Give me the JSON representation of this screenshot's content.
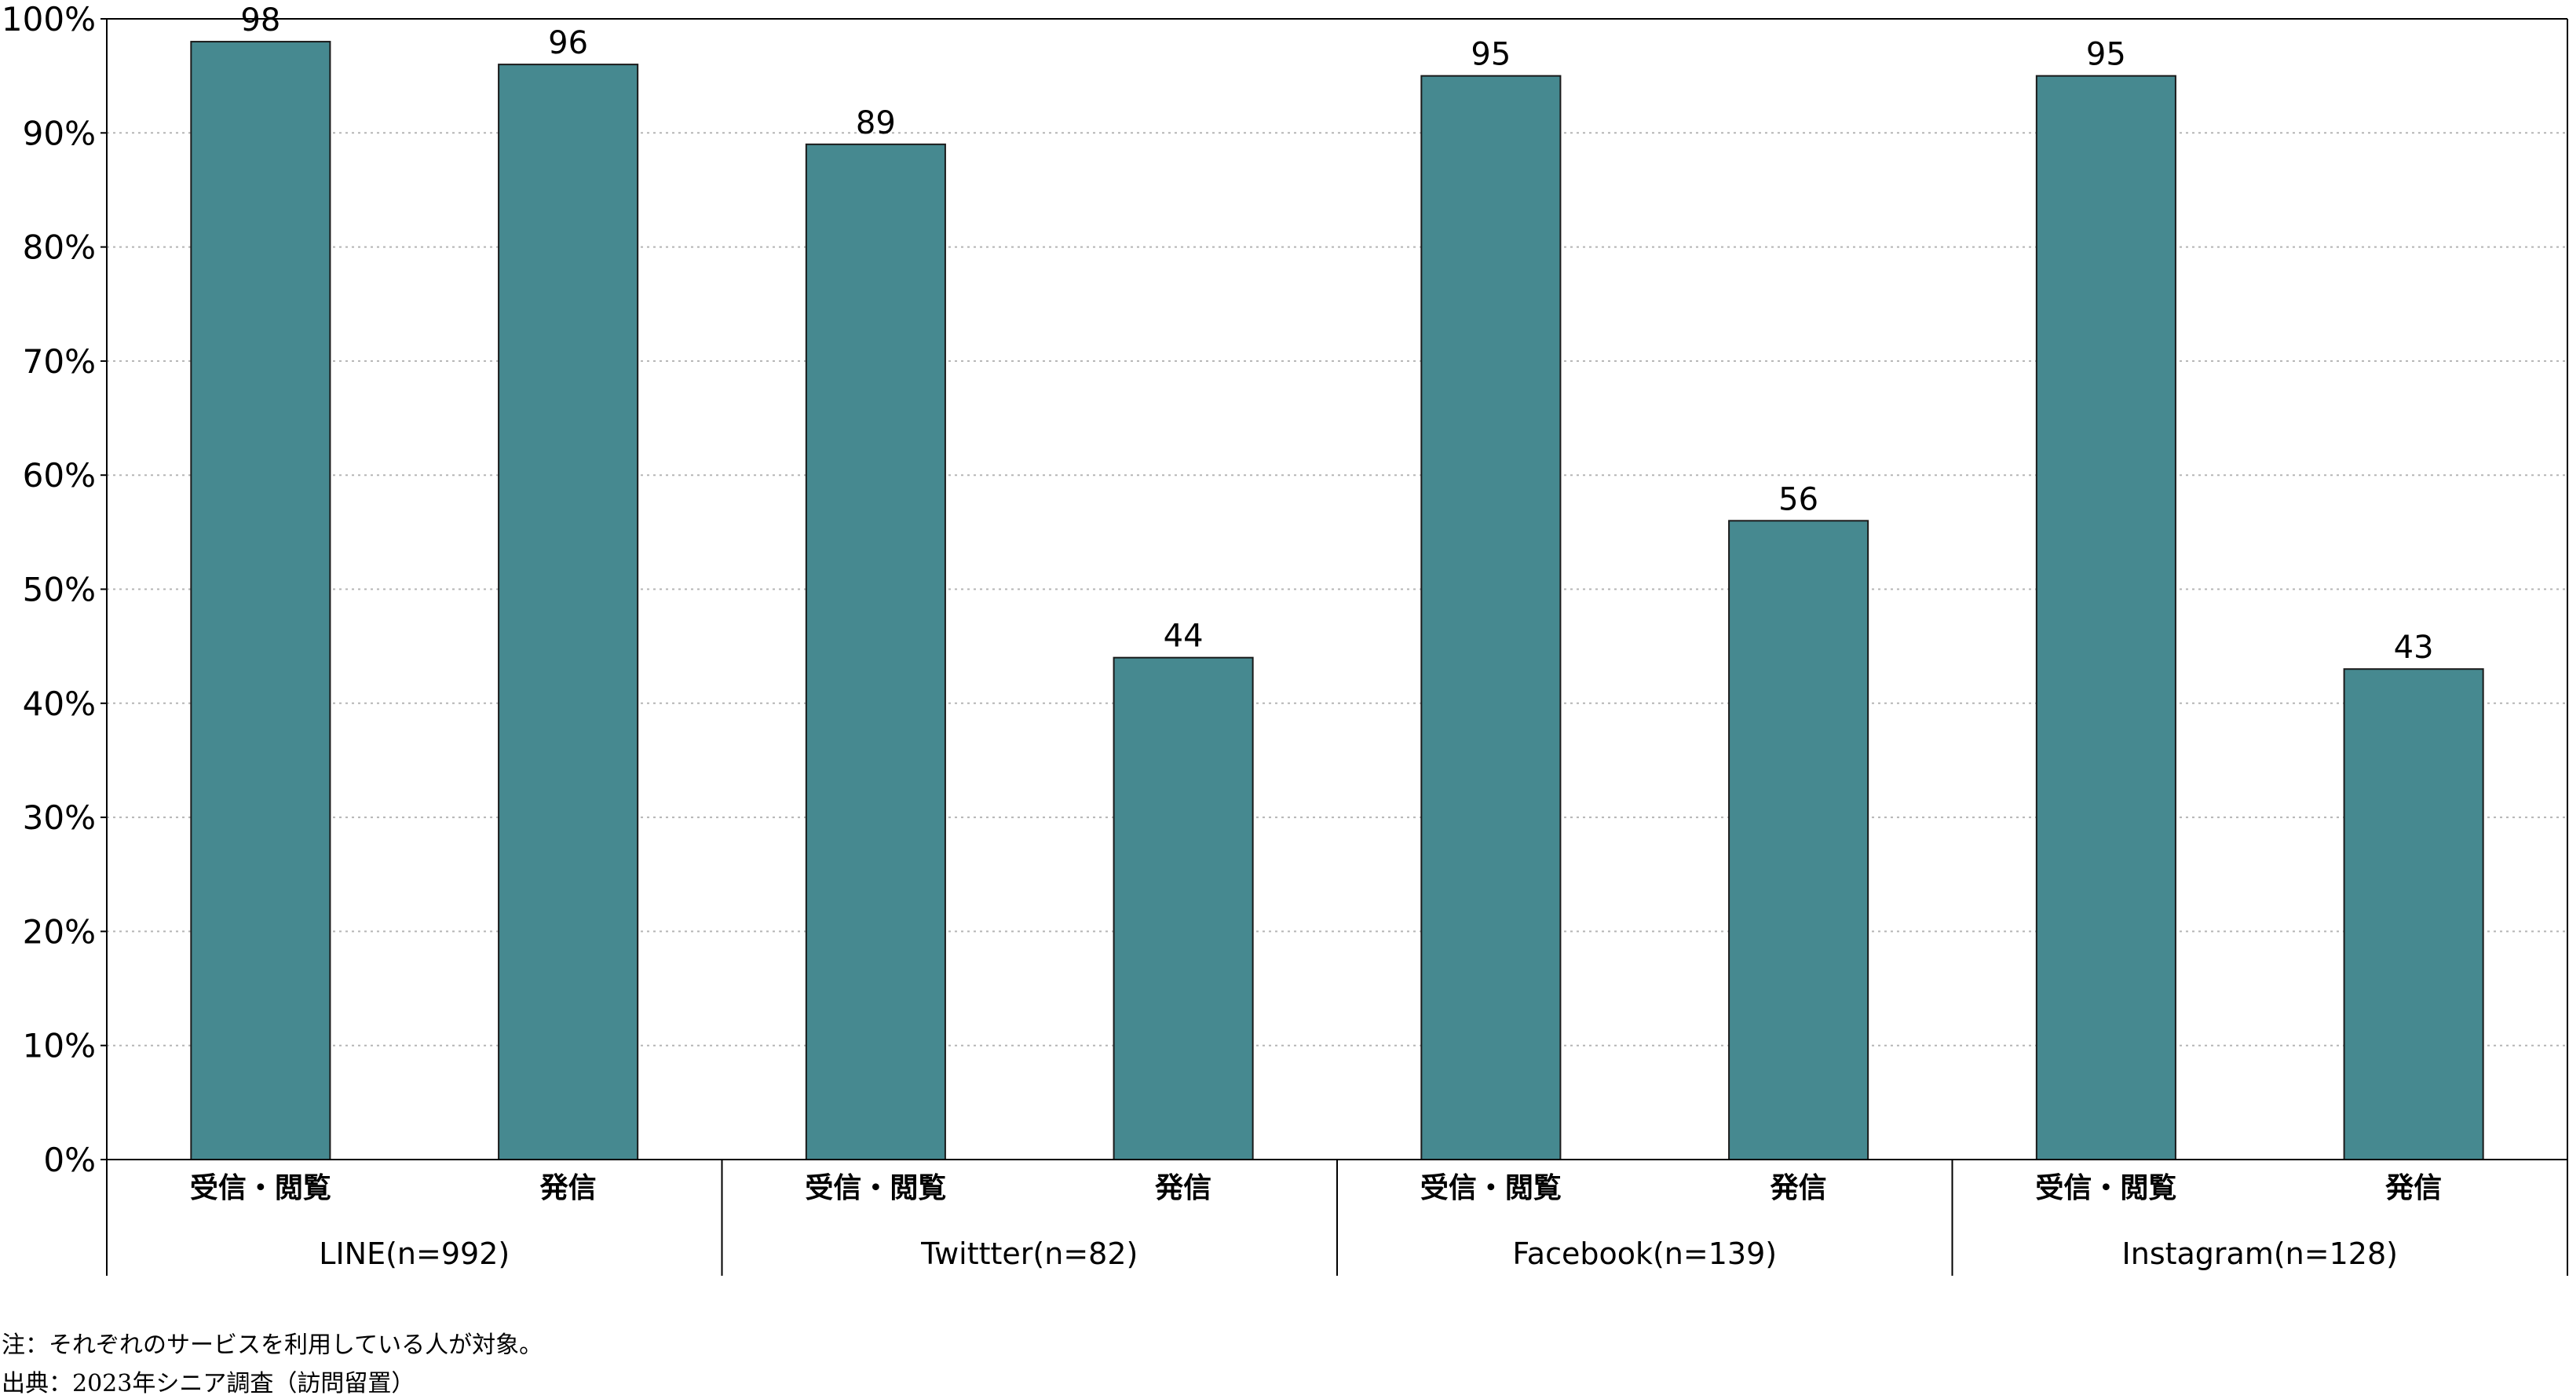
{
  "chart_data": {
    "type": "bar",
    "groups": [
      {
        "name": "LINE(n=992)",
        "categories": [
          "受信・閲覧",
          "発信"
        ],
        "values": [
          98,
          96
        ]
      },
      {
        "name": "Twittter(n=82)",
        "categories": [
          "受信・閲覧",
          "発信"
        ],
        "values": [
          89,
          44
        ]
      },
      {
        "name": "Facebook(n=139)",
        "categories": [
          "受信・閲覧",
          "発信"
        ],
        "values": [
          95,
          56
        ]
      },
      {
        "name": "Instagram(n=128)",
        "categories": [
          "受信・閲覧",
          "発信"
        ],
        "values": [
          95,
          43
        ]
      }
    ],
    "y_ticks": [
      "0%",
      "10%",
      "20%",
      "30%",
      "40%",
      "50%",
      "60%",
      "70%",
      "80%",
      "90%",
      "100%"
    ],
    "ylim": [
      0,
      100
    ],
    "grid": true,
    "bar_color": "#468990",
    "title": "",
    "xlabel": "",
    "ylabel": ""
  },
  "notes": {
    "note": "注：それぞれのサービスを利用している人が対象。",
    "source": "出典：2023年シニア調査（訪問留置）"
  }
}
